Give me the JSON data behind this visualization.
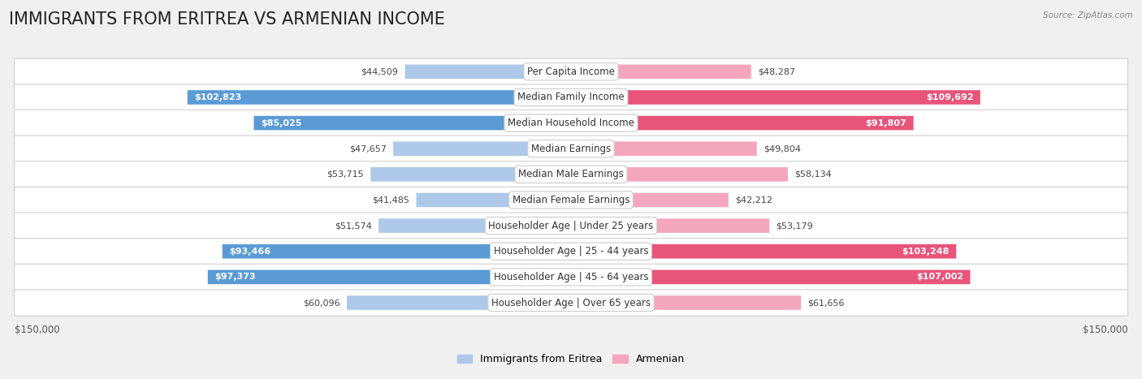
{
  "title": "IMMIGRANTS FROM ERITREA VS ARMENIAN INCOME",
  "source": "Source: ZipAtlas.com",
  "categories": [
    "Per Capita Income",
    "Median Family Income",
    "Median Household Income",
    "Median Earnings",
    "Median Male Earnings",
    "Median Female Earnings",
    "Householder Age | Under 25 years",
    "Householder Age | 25 - 44 years",
    "Householder Age | 45 - 64 years",
    "Householder Age | Over 65 years"
  ],
  "eritrea_values": [
    44509,
    102823,
    85025,
    47657,
    53715,
    41485,
    51574,
    93466,
    97373,
    60096
  ],
  "armenian_values": [
    48287,
    109692,
    91807,
    49804,
    58134,
    42212,
    53179,
    103248,
    107002,
    61656
  ],
  "eritrea_color_light": "#adc8e8",
  "eritrea_color_dark": "#5b9bd5",
  "armenian_color_light": "#f4a7bc",
  "armenian_color_dark": "#e8547a",
  "eritrea_label": "Immigrants from Eritrea",
  "armenian_label": "Armenian",
  "x_max": 150000,
  "large_threshold": 70000,
  "bg_color": "#f0f0f0",
  "row_bg_color": "#ffffff",
  "title_fontsize": 15,
  "label_fontsize": 8.5,
  "value_fontsize": 8,
  "axis_label": "$150,000"
}
